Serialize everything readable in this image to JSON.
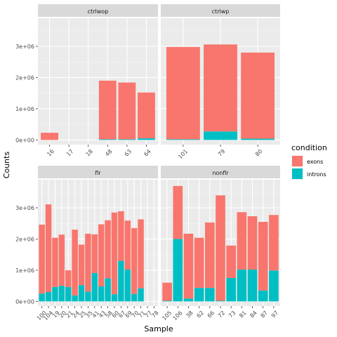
{
  "chart_data": {
    "type": "bar",
    "stacked": true,
    "facet_layout": "2x2, free x scales",
    "xlabel": "Sample",
    "ylabel": "Counts",
    "legend": {
      "title": "condition",
      "position": "right",
      "entries": [
        {
          "label": "exons",
          "color": "#F8766D"
        },
        {
          "label": "introns",
          "color": "#00BFC4"
        }
      ]
    },
    "ylim": [
      -150000,
      3900000
    ],
    "yticks": [
      0,
      1000000,
      2000000,
      3000000
    ],
    "ytick_labels": [
      "0e+00",
      "1e+06",
      "2e+06",
      "3e+06"
    ],
    "grid": true,
    "facets": [
      {
        "title": "ctrlwop",
        "categories": [
          "16",
          "17",
          "18",
          "48",
          "63",
          "64"
        ],
        "series": [
          {
            "name": "introns",
            "values": [
              0,
              0,
              0,
              20000,
              20000,
              50000
            ]
          },
          {
            "name": "exons",
            "values": [
              230000,
              0,
              0,
              1880000,
              1820000,
              1470000
            ]
          }
        ]
      },
      {
        "title": "ctrlwp",
        "categories": [
          "101",
          "79",
          "80"
        ],
        "series": [
          {
            "name": "introns",
            "values": [
              20000,
              270000,
              40000
            ]
          },
          {
            "name": "exons",
            "values": [
              2960000,
              2790000,
              2760000
            ]
          }
        ]
      },
      {
        "title": "flr",
        "categories": [
          "100",
          "104",
          "19",
          "20",
          "21",
          "24",
          "25",
          "35",
          "41",
          "43",
          "58",
          "60",
          "67",
          "69",
          "70",
          "71",
          "77",
          "78"
        ],
        "series": [
          {
            "name": "introns",
            "values": [
              250000,
              300000,
              460000,
              500000,
              460000,
              190000,
              520000,
              310000,
              910000,
              480000,
              740000,
              230000,
              1300000,
              1020000,
              240000,
              420000,
              0,
              0
            ]
          },
          {
            "name": "exons",
            "values": [
              2210000,
              2810000,
              1580000,
              1640000,
              540000,
              2110000,
              1300000,
              1860000,
              1240000,
              1990000,
              1860000,
              2620000,
              1590000,
              1570000,
              2110000,
              2210000,
              0,
              0
            ]
          }
        ]
      },
      {
        "title": "nonflr",
        "categories": [
          "105",
          "106",
          "38",
          "62",
          "66",
          "72",
          "73",
          "81",
          "84",
          "87",
          "97"
        ],
        "series": [
          {
            "name": "introns",
            "values": [
              20000,
              2000000,
              90000,
              430000,
              430000,
              20000,
              750000,
              1020000,
              1020000,
              350000,
              990000
            ]
          },
          {
            "name": "exons",
            "values": [
              580000,
              1700000,
              2080000,
              1610000,
              2100000,
              3380000,
              1040000,
              1840000,
              1710000,
              2200000,
              1780000
            ]
          }
        ]
      }
    ]
  }
}
